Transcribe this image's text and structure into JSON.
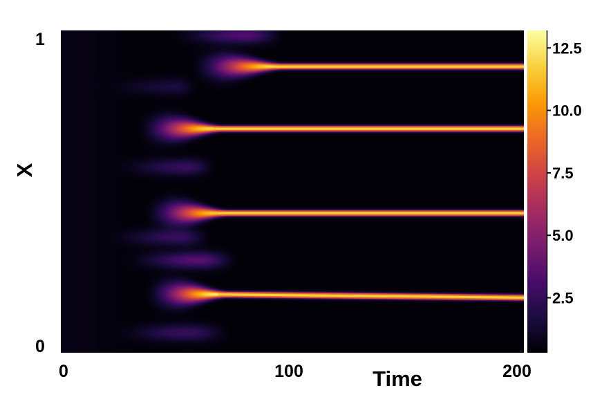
{
  "chart_data": {
    "type": "heatmap",
    "title": "",
    "xlabel": "Time",
    "ylabel": "X",
    "xlim": [
      0,
      200
    ],
    "ylim": [
      0,
      1
    ],
    "x_ticks": [
      {
        "value": 0,
        "label": "0"
      },
      {
        "value": 100,
        "label": "100"
      },
      {
        "value": 200,
        "label": "200"
      }
    ],
    "y_ticks": [
      {
        "value": 0,
        "label": "0"
      },
      {
        "value": 1,
        "label": "1"
      }
    ],
    "colormap": "inferno",
    "colormap_stops": [
      "#000004",
      "#1b0c41",
      "#4a0c6b",
      "#781c6d",
      "#a52c60",
      "#cf4446",
      "#ed6925",
      "#fb9b06",
      "#f7d13d",
      "#fcffa4"
    ],
    "value_range": [
      0.3,
      13.2
    ],
    "colorbar_ticks": [
      {
        "value": 2.5,
        "label": "2.5"
      },
      {
        "value": 5.0,
        "label": "5.0"
      },
      {
        "value": 7.5,
        "label": "7.5"
      },
      {
        "value": 10.0,
        "label": "10.0"
      },
      {
        "value": 12.5,
        "label": "12.5"
      }
    ],
    "background_value": 0.4,
    "stable_peaks": [
      {
        "y_start": 0.186,
        "y_end": 0.171,
        "t_emerge": 45,
        "t_full": 68,
        "peak_value": 12.5
      },
      {
        "y_start": 0.433,
        "y_end": 0.433,
        "t_emerge": 45,
        "t_full": 68,
        "peak_value": 11.5
      },
      {
        "y_start": 0.695,
        "y_end": 0.695,
        "t_emerge": 42,
        "t_full": 66,
        "peak_value": 12.0
      },
      {
        "y_start": 0.888,
        "y_end": 0.888,
        "t_emerge": 65,
        "t_full": 92,
        "peak_value": 12.0
      }
    ],
    "transient_peaks": [
      {
        "y": 0.062,
        "t_peak": 55,
        "t_end": 75,
        "peak_value": 2.2
      },
      {
        "y": 0.287,
        "t_peak": 60,
        "t_end": 78,
        "peak_value": 3.2
      },
      {
        "y": 0.358,
        "t_peak": 52,
        "t_end": 66,
        "peak_value": 2.2
      },
      {
        "y": 0.576,
        "t_peak": 55,
        "t_end": 68,
        "peak_value": 2.2
      },
      {
        "y": 0.825,
        "t_peak": 50,
        "t_end": 60,
        "peak_value": 1.3
      },
      {
        "y": 0.985,
        "t_peak": 80,
        "t_end": 98,
        "peak_value": 3.0
      }
    ]
  }
}
